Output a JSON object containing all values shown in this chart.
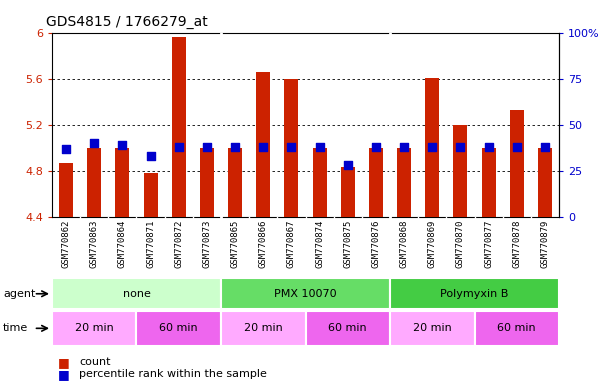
{
  "title": "GDS4815 / 1766279_at",
  "samples": [
    "GSM770862",
    "GSM770863",
    "GSM770864",
    "GSM770871",
    "GSM770872",
    "GSM770873",
    "GSM770865",
    "GSM770866",
    "GSM770867",
    "GSM770874",
    "GSM770875",
    "GSM770876",
    "GSM770868",
    "GSM770869",
    "GSM770870",
    "GSM770877",
    "GSM770878",
    "GSM770879"
  ],
  "count_values": [
    4.87,
    5.0,
    5.0,
    4.78,
    5.96,
    5.0,
    5.0,
    5.66,
    5.6,
    5.0,
    4.83,
    5.0,
    5.0,
    5.61,
    5.2,
    5.0,
    5.33,
    5.0
  ],
  "percentile_values": [
    37,
    40,
    39,
    33,
    38,
    38,
    38,
    38,
    38,
    38,
    28,
    38,
    38,
    38,
    38,
    38,
    38,
    38
  ],
  "ylim_left": [
    4.4,
    6.0
  ],
  "ylim_right": [
    0,
    100
  ],
  "yticks_left": [
    4.4,
    4.8,
    5.2,
    5.6,
    6.0
  ],
  "yticks_right": [
    0,
    25,
    50,
    75,
    100
  ],
  "ytick_labels_left": [
    "4.4",
    "4.8",
    "5.2",
    "5.6",
    "6"
  ],
  "ytick_labels_right": [
    "0",
    "25",
    "50",
    "75",
    "100%"
  ],
  "bar_color": "#cc2200",
  "dot_color": "#0000cc",
  "agent_groups": [
    {
      "label": "none",
      "start": 0,
      "end": 6,
      "color": "#ccffcc"
    },
    {
      "label": "PMX 10070",
      "start": 6,
      "end": 12,
      "color": "#66dd66"
    },
    {
      "label": "Polymyxin B",
      "start": 12,
      "end": 18,
      "color": "#44cc44"
    }
  ],
  "time_groups": [
    {
      "label": "20 min",
      "start": 0,
      "end": 3,
      "color": "#ffaaff"
    },
    {
      "label": "60 min",
      "start": 3,
      "end": 6,
      "color": "#ee66ee"
    },
    {
      "label": "20 min",
      "start": 6,
      "end": 9,
      "color": "#ffaaff"
    },
    {
      "label": "60 min",
      "start": 9,
      "end": 12,
      "color": "#ee66ee"
    },
    {
      "label": "20 min",
      "start": 12,
      "end": 15,
      "color": "#ffaaff"
    },
    {
      "label": "60 min",
      "start": 15,
      "end": 18,
      "color": "#ee66ee"
    }
  ],
  "bar_width": 0.5,
  "dot_size": 35,
  "background_color": "#ffffff",
  "plot_bg_color": "#ffffff",
  "left_axis_color": "#cc2200",
  "right_axis_color": "#0000cc",
  "xlabel_fontsize": 6.5,
  "title_fontsize": 10,
  "tick_fontsize": 8,
  "legend_items": [
    "count",
    "percentile rank within the sample"
  ],
  "legend_colors": [
    "#cc2200",
    "#0000cc"
  ],
  "xticklabel_bg": "#dddddd"
}
